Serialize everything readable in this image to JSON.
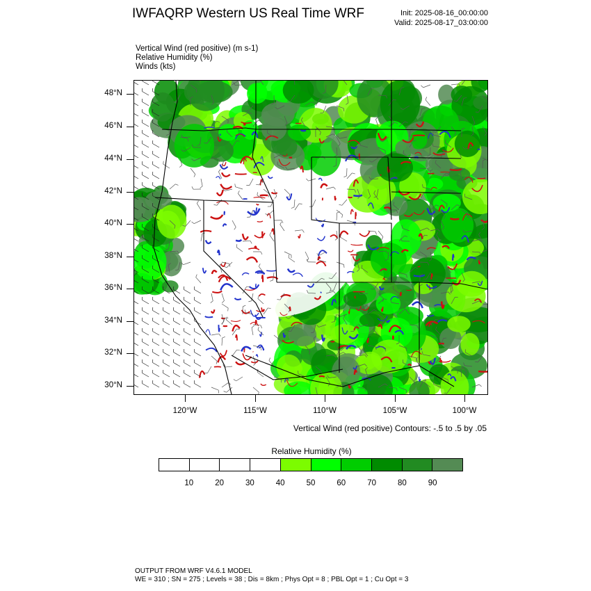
{
  "header": {
    "title": "IWFAQRP Western US Real Time WRF",
    "init": "Init: 2025-08-16_00:00:00",
    "valid": "Valid: 2025-08-17_03:00:00"
  },
  "fields": [
    "Vertical Wind (red positive)   (m s-1)",
    "Relative Humidity   (%)",
    "Winds   (kts)"
  ],
  "map": {
    "lat_labels": [
      "48°N",
      "46°N",
      "44°N",
      "42°N",
      "40°N",
      "38°N",
      "36°N",
      "34°N",
      "32°N",
      "30°N"
    ],
    "lon_labels": [
      "120°W",
      "115°W",
      "110°W",
      "105°W",
      "100°W"
    ],
    "contour_note": "Vertical Wind (red positive) Contours: -.5 to .5 by .05"
  },
  "colorbar": {
    "title": "Relative Humidity   (%)",
    "ticks": [
      "10",
      "20",
      "30",
      "40",
      "50",
      "60",
      "70",
      "80",
      "90"
    ],
    "colors": [
      "#ffffff",
      "#ffffff",
      "#ffffff",
      "#ffffff",
      "#7cfc00",
      "#00ff00",
      "#00cd00",
      "#008b00",
      "#228b22",
      "#548b54"
    ]
  },
  "footer": {
    "line1": "OUTPUT FROM WRF V4.6.1 MODEL",
    "line2": "WE = 310 ; SN = 275 ; Levels = 38 ; Dis = 8km ; Phys Opt = 8 ; PBL Opt = 1 ; Cu Opt = 3"
  }
}
